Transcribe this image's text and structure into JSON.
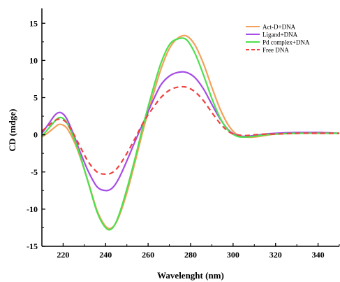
{
  "chart_data": {
    "type": "line",
    "title": "",
    "xlabel": "Wavelenght (nm)",
    "ylabel": "CD (mdge)",
    "xlim": [
      210,
      350
    ],
    "ylim": [
      -15,
      17
    ],
    "xticks": [
      220,
      240,
      260,
      280,
      300,
      320,
      340
    ],
    "yticks": [
      -15,
      -10,
      -5,
      0,
      5,
      10,
      15
    ],
    "grid": false,
    "legend_position": "top-right",
    "series": [
      {
        "name": "Act-D+DNA",
        "color": "#f5a05a",
        "dash": "solid",
        "x": [
          210,
          213,
          216,
          218,
          220,
          222,
          225,
          228,
          232,
          236,
          240,
          243,
          246,
          250,
          254,
          258,
          262,
          266,
          270,
          274,
          278,
          282,
          286,
          290,
          294,
          298,
          302,
          306,
          310,
          315,
          320,
          330,
          340,
          350
        ],
        "y": [
          -0.3,
          0.3,
          1.0,
          1.4,
          1.3,
          0.8,
          -0.8,
          -3.0,
          -6.5,
          -10.2,
          -12.3,
          -12.5,
          -11.2,
          -7.8,
          -3.5,
          1.0,
          5.0,
          8.8,
          11.6,
          13.0,
          13.3,
          12.1,
          9.6,
          6.4,
          3.4,
          1.2,
          0.0,
          -0.3,
          -0.3,
          -0.1,
          0.1,
          0.2,
          0.3,
          0.2
        ]
      },
      {
        "name": "Ligand+DNA",
        "color": "#a64ce6",
        "dash": "solid",
        "x": [
          210,
          213,
          216,
          218,
          220,
          222,
          225,
          228,
          232,
          236,
          240,
          243,
          246,
          250,
          254,
          258,
          262,
          266,
          270,
          274,
          278,
          282,
          286,
          290,
          294,
          298,
          302,
          306,
          310,
          315,
          320,
          330,
          340,
          350
        ],
        "y": [
          0.2,
          1.4,
          2.6,
          3.0,
          2.8,
          2.0,
          0.0,
          -2.3,
          -5.0,
          -7.0,
          -7.5,
          -7.2,
          -6.0,
          -3.5,
          -0.8,
          1.8,
          4.4,
          6.7,
          7.9,
          8.4,
          8.4,
          7.7,
          6.2,
          4.1,
          2.1,
          0.6,
          -0.1,
          -0.2,
          -0.1,
          0.1,
          0.2,
          0.3,
          0.3,
          0.2
        ]
      },
      {
        "name": "Pd complex+DNA",
        "color": "#4de04d",
        "dash": "solid",
        "x": [
          210,
          213,
          216,
          218,
          220,
          222,
          225,
          228,
          232,
          236,
          240,
          243,
          246,
          250,
          254,
          258,
          262,
          266,
          270,
          274,
          278,
          282,
          286,
          290,
          294,
          298,
          302,
          306,
          310,
          315,
          320,
          330,
          340,
          350
        ],
        "y": [
          -0.2,
          0.8,
          1.8,
          2.3,
          2.2,
          1.5,
          -0.4,
          -2.8,
          -6.6,
          -10.4,
          -12.5,
          -12.6,
          -11.0,
          -7.3,
          -3.0,
          1.6,
          5.8,
          9.6,
          12.1,
          12.9,
          12.8,
          11.0,
          8.1,
          4.9,
          2.2,
          0.5,
          -0.2,
          -0.3,
          -0.2,
          0.0,
          0.1,
          0.2,
          0.2,
          0.2
        ]
      },
      {
        "name": "Free DNA",
        "color": "#f04040",
        "dash": "dashed",
        "x": [
          210,
          213,
          216,
          218,
          220,
          222,
          225,
          228,
          232,
          236,
          240,
          243,
          246,
          250,
          254,
          258,
          262,
          266,
          270,
          274,
          278,
          282,
          286,
          290,
          294,
          298,
          302,
          306,
          310,
          315,
          320,
          330,
          340,
          350
        ],
        "y": [
          0.5,
          1.2,
          1.9,
          2.1,
          2.0,
          1.5,
          0.1,
          -1.6,
          -3.7,
          -5.0,
          -5.3,
          -5.1,
          -4.3,
          -2.5,
          -0.4,
          1.8,
          3.5,
          5.0,
          6.0,
          6.4,
          6.4,
          5.8,
          4.6,
          3.0,
          1.5,
          0.4,
          0.0,
          -0.1,
          0.0,
          0.1,
          0.1,
          0.2,
          0.2,
          0.2
        ]
      }
    ]
  }
}
